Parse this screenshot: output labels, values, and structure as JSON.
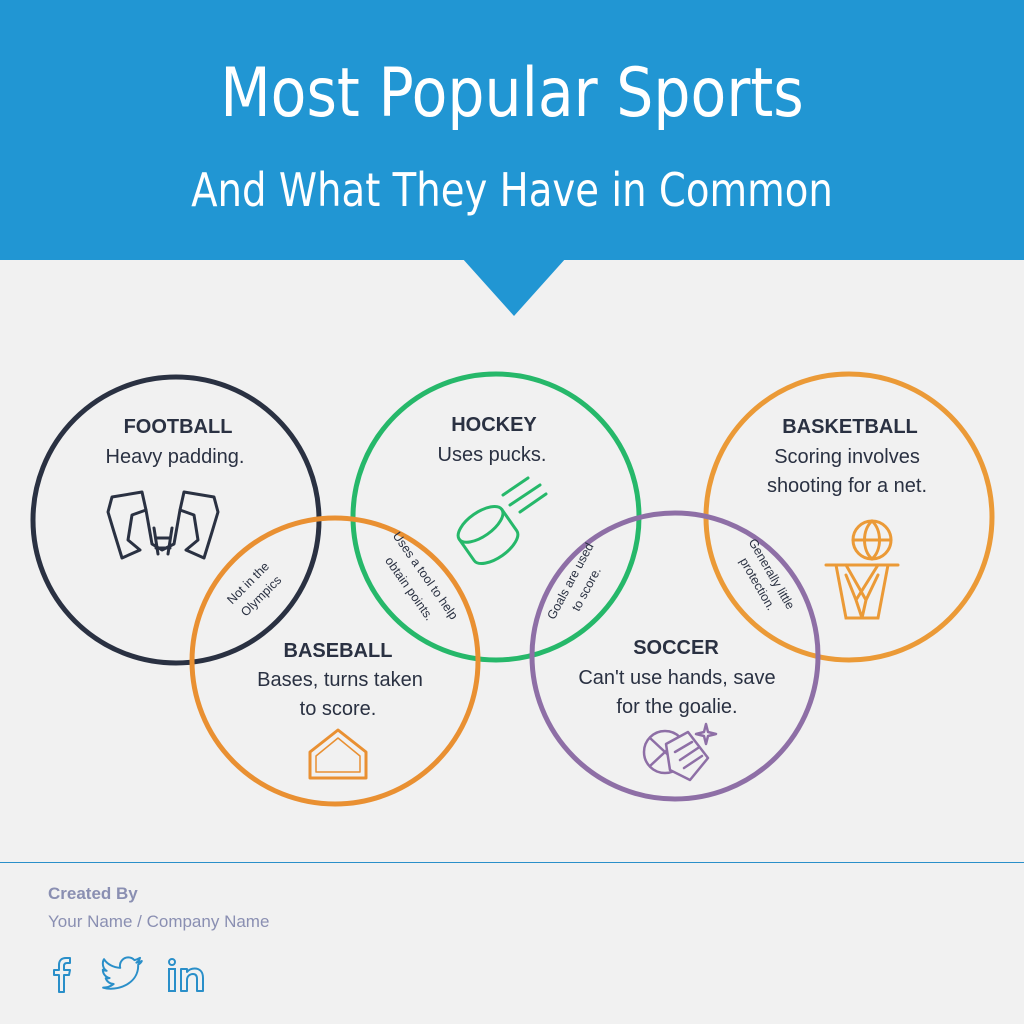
{
  "header": {
    "title": "Most Popular Sports",
    "subtitle": "And What They Have in Common"
  },
  "sports": {
    "football": {
      "name": "FOOTBALL",
      "desc": [
        "Heavy padding."
      ],
      "color": "#2a3142",
      "icon": "shoulder-pads-icon"
    },
    "hockey": {
      "name": "HOCKEY",
      "desc": [
        "Uses pucks."
      ],
      "color": "#26b86a",
      "icon": "hockey-puck-icon"
    },
    "basketball": {
      "name": "BASKETBALL",
      "desc": [
        "Scoring involves",
        "shooting for a net."
      ],
      "color": "#eb9a37",
      "icon": "basketball-hoop-icon"
    },
    "baseball": {
      "name": "BASEBALL",
      "desc": [
        "Bases, turns taken",
        "to score."
      ],
      "color": "#e99032",
      "icon": "home-plate-icon"
    },
    "soccer": {
      "name": "SOCCER",
      "desc": [
        "Can't use hands, save",
        "for the goalie."
      ],
      "color": "#8e6fa6",
      "icon": "goalie-gloves-icon"
    }
  },
  "overlaps": {
    "football_baseball": [
      "Not in the",
      "Olympics"
    ],
    "hockey_baseball": [
      "Uses a tool to help",
      "obtain points."
    ],
    "hockey_soccer": [
      "Goals are used",
      "to score."
    ],
    "soccer_basketball": [
      "Generally little",
      "protection."
    ]
  },
  "footer": {
    "created_by": "Created By",
    "author": "Your Name / Company Name",
    "social_color": "#2a8fc9",
    "social_icons": [
      "facebook-icon",
      "twitter-icon",
      "linkedin-icon"
    ]
  }
}
